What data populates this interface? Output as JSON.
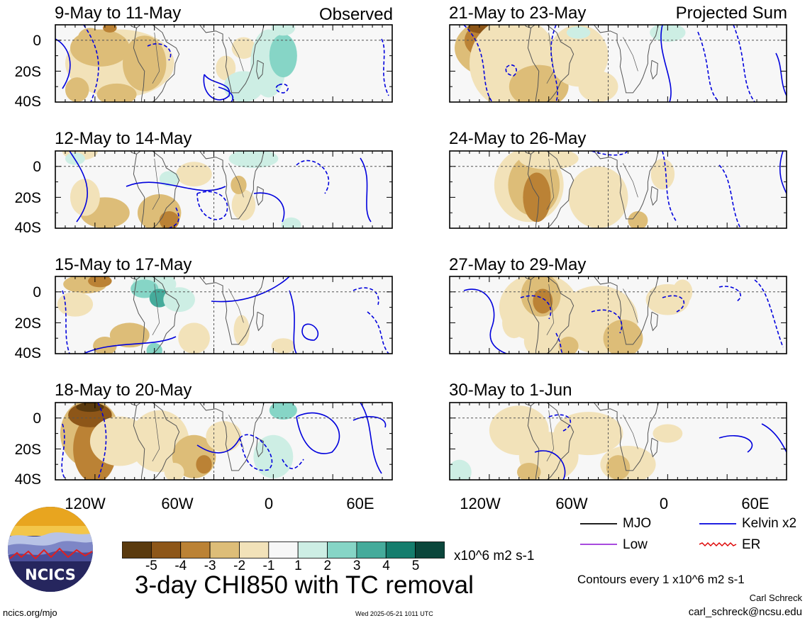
{
  "panels": [
    {
      "title": "9-May to 11-May",
      "tag": "Observed"
    },
    {
      "title": "12-May to 14-May",
      "tag": ""
    },
    {
      "title": "15-May to 17-May",
      "tag": ""
    },
    {
      "title": "18-May to 20-May",
      "tag": ""
    },
    {
      "title": "21-May to 23-May",
      "tag": "Projected Sum"
    },
    {
      "title": "24-May to 26-May",
      "tag": ""
    },
    {
      "title": "27-May to 29-May",
      "tag": ""
    },
    {
      "title": "30-May to 1-Jun",
      "tag": ""
    }
  ],
  "y_tick_labels": [
    "0",
    "20S",
    "40S"
  ],
  "x_tick_labels": [
    "120W",
    "60W",
    "0",
    "60E"
  ],
  "colorbar": {
    "colors": [
      "#5a3a0e",
      "#8d5618",
      "#bb8235",
      "#ddbd78",
      "#f2e2b9",
      "#f7f7f7",
      "#cdeee4",
      "#86d5c6",
      "#45ab9b",
      "#157d6d",
      "#0a463b"
    ],
    "tick_labels": [
      "-5",
      "-4",
      "-3",
      "-2",
      "-1",
      "1",
      "2",
      "3",
      "4",
      "5"
    ],
    "units": "x10^6 m2 s-1"
  },
  "legend": [
    {
      "label": "MJO",
      "color": "#000000"
    },
    {
      "label": "Kelvin x2",
      "color": "#0000dd"
    },
    {
      "label": "Low",
      "color": "#9b30d9"
    },
    {
      "label": "ER",
      "color": "#dd0000"
    }
  ],
  "contour_note": "Contours every 1 x10^6 m2 s-1",
  "main_title": "3-day CHI850 with TC removal",
  "logo_text": "NCICS",
  "footer_left": "ncics.org/mjo",
  "footer_center": "Wed 2025-05-21 1011 UTC",
  "author_name": "Carl Schreck",
  "author_email": "carl_schreck@ncsu.edu",
  "chart_data": {
    "type": "heatmap",
    "variable": "3-day CHI850 with TC removal",
    "units": "x10^6 m2 s-1",
    "x_ticks": [
      "120W",
      "60W",
      "0",
      "60E"
    ],
    "y_ticks": [
      "0",
      "20S",
      "40S"
    ],
    "color_levels": [
      -5,
      -4,
      -3,
      -2,
      -1,
      1,
      2,
      3,
      4,
      5
    ],
    "contour_interval": 1,
    "contour_series": [
      "MJO",
      "Kelvin x2",
      "Low",
      "ER"
    ],
    "panels": [
      "9-May to 11-May",
      "12-May to 14-May",
      "15-May to 17-May",
      "18-May to 20-May",
      "21-May to 23-May",
      "24-May to 26-May",
      "27-May to 29-May",
      "30-May to 1-Jun"
    ]
  }
}
